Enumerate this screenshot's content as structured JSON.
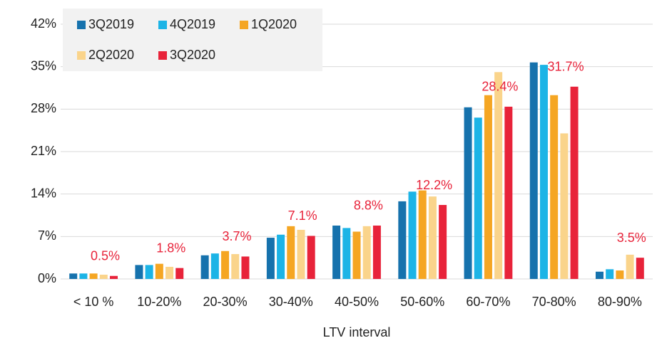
{
  "chart_data": {
    "type": "bar",
    "x_label": "LTV interval",
    "categories": [
      "< 10 %",
      "10-20%",
      "20-30%",
      "30-40%",
      "40-50%",
      "50-60%",
      "60-70%",
      "70-80%",
      "80-90%"
    ],
    "series": [
      {
        "name": "3Q2019",
        "color": "#1672ad",
        "values": [
          0.9,
          2.3,
          3.9,
          6.8,
          8.8,
          12.8,
          28.3,
          35.7,
          1.2
        ]
      },
      {
        "name": "4Q2019",
        "color": "#1cb4e6",
        "values": [
          0.9,
          2.3,
          4.2,
          7.3,
          8.4,
          14.4,
          26.6,
          35.3,
          1.6
        ]
      },
      {
        "name": "1Q2020",
        "color": "#f5a623",
        "values": [
          0.9,
          2.5,
          4.6,
          8.7,
          7.8,
          14.6,
          30.3,
          30.3,
          1.4
        ]
      },
      {
        "name": "2Q2020",
        "color": "#fad48b",
        "values": [
          0.7,
          2.0,
          4.1,
          8.1,
          8.7,
          13.6,
          34.1,
          24.0,
          4.0
        ]
      },
      {
        "name": "3Q2020",
        "color": "#e8233a",
        "values": [
          0.5,
          1.8,
          3.7,
          7.1,
          8.8,
          12.2,
          28.4,
          31.7,
          3.5
        ],
        "value_labels": [
          "0.5%",
          "1.8%",
          "3.7%",
          "7.1%",
          "8.8%",
          "12.2%",
          "28.4%",
          "31.7%",
          "3.5%"
        ]
      }
    ],
    "ylim": [
      0,
      42
    ],
    "yticks": [
      {
        "value": 0,
        "label": "0%"
      },
      {
        "value": 7,
        "label": "7%"
      },
      {
        "value": 14,
        "label": "14%"
      },
      {
        "value": 21,
        "label": "21%"
      },
      {
        "value": 28,
        "label": "28%"
      },
      {
        "value": 35,
        "label": "35%"
      },
      {
        "value": 42,
        "label": "42%"
      }
    ],
    "grid": true,
    "legend": "upper left"
  }
}
